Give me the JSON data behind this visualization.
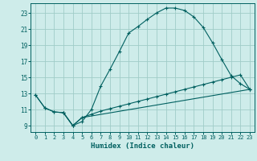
{
  "xlabel": "Humidex (Indice chaleur)",
  "bg_color": "#ceecea",
  "grid_color": "#a0ccc8",
  "line_color": "#006060",
  "xlim": [
    -0.5,
    23.5
  ],
  "ylim": [
    8.2,
    24.2
  ],
  "xticks": [
    0,
    1,
    2,
    3,
    4,
    5,
    6,
    7,
    8,
    9,
    10,
    11,
    12,
    13,
    14,
    15,
    16,
    17,
    18,
    19,
    20,
    21,
    22,
    23
  ],
  "yticks": [
    9,
    11,
    13,
    15,
    17,
    19,
    21,
    23
  ],
  "line1_x": [
    0,
    1,
    2,
    3,
    4,
    5,
    6,
    7,
    8,
    9,
    10,
    11,
    12,
    13,
    14,
    15,
    16,
    17,
    18,
    19,
    20,
    21,
    22,
    23
  ],
  "line1_y": [
    12.8,
    11.2,
    10.7,
    10.6,
    9.0,
    9.5,
    11.0,
    13.9,
    16.0,
    18.2,
    20.5,
    21.3,
    22.2,
    23.0,
    23.6,
    23.6,
    23.3,
    22.5,
    21.2,
    19.3,
    17.2,
    15.2,
    14.2,
    13.5
  ],
  "line2_x": [
    3,
    4,
    5,
    6,
    7,
    8,
    9,
    10,
    11,
    12,
    13,
    14,
    15,
    16,
    17,
    18,
    19,
    20,
    21,
    22,
    23
  ],
  "line2_y": [
    10.6,
    9.0,
    10.0,
    10.4,
    10.8,
    11.1,
    11.4,
    11.7,
    12.0,
    12.3,
    12.6,
    12.9,
    13.2,
    13.5,
    13.8,
    14.1,
    14.4,
    14.7,
    15.0,
    15.3,
    13.5
  ],
  "line3_x": [
    0,
    1,
    2,
    3,
    4,
    5,
    23
  ],
  "line3_y": [
    12.8,
    11.2,
    10.7,
    10.6,
    9.0,
    10.0,
    13.5
  ]
}
